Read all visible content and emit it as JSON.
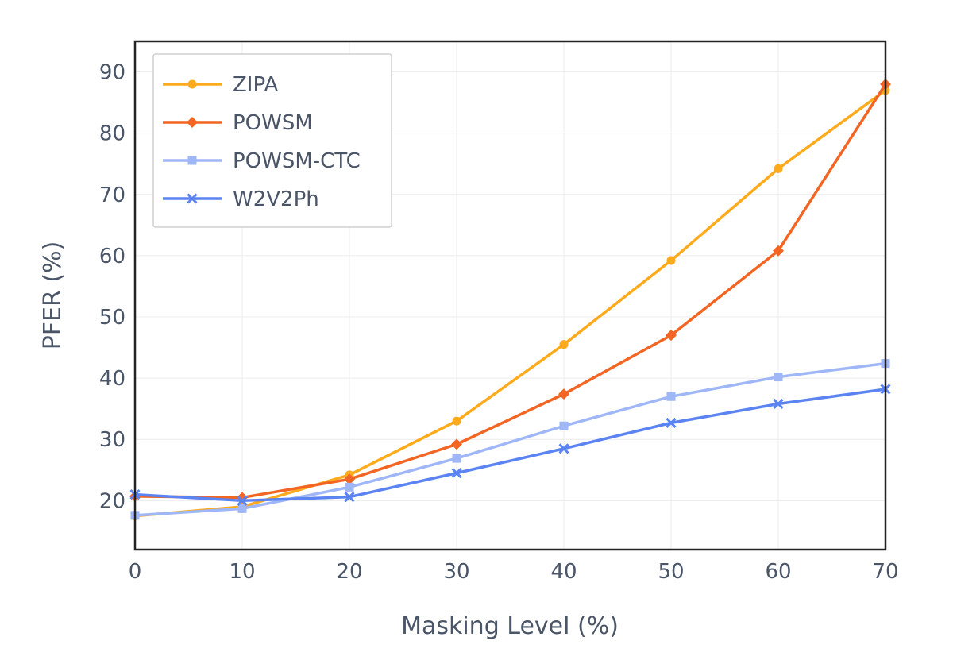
{
  "chart_data": {
    "type": "line",
    "title": "",
    "xlabel": "Masking Level (%)",
    "ylabel": "PFER (%)",
    "xlim": [
      0,
      70
    ],
    "ylim": [
      12,
      95
    ],
    "xticks": [
      0,
      10,
      20,
      30,
      40,
      50,
      60,
      70
    ],
    "yticks": [
      20,
      30,
      40,
      50,
      60,
      70,
      80,
      90
    ],
    "grid": true,
    "legend": "top-left",
    "x": [
      0,
      10,
      20,
      30,
      40,
      50,
      60,
      70
    ],
    "series": [
      {
        "name": "ZIPA",
        "color": "#fdaa1c",
        "marker": "circle",
        "values": [
          17.5,
          19.0,
          24.2,
          33.0,
          45.5,
          59.2,
          74.2,
          87.0
        ]
      },
      {
        "name": "POWSM",
        "color": "#f26522",
        "marker": "diamond",
        "values": [
          20.7,
          20.5,
          23.5,
          29.2,
          37.4,
          47.0,
          60.8,
          88.0
        ]
      },
      {
        "name": "POWSM-CTC",
        "color": "#9fb6f7",
        "marker": "square",
        "values": [
          17.6,
          18.7,
          22.2,
          26.9,
          32.2,
          37.0,
          40.2,
          42.4
        ]
      },
      {
        "name": "W2V2Ph",
        "color": "#5b84f2",
        "marker": "x",
        "values": [
          21.0,
          20.0,
          20.6,
          24.5,
          28.5,
          32.7,
          35.8,
          38.2
        ]
      }
    ]
  }
}
